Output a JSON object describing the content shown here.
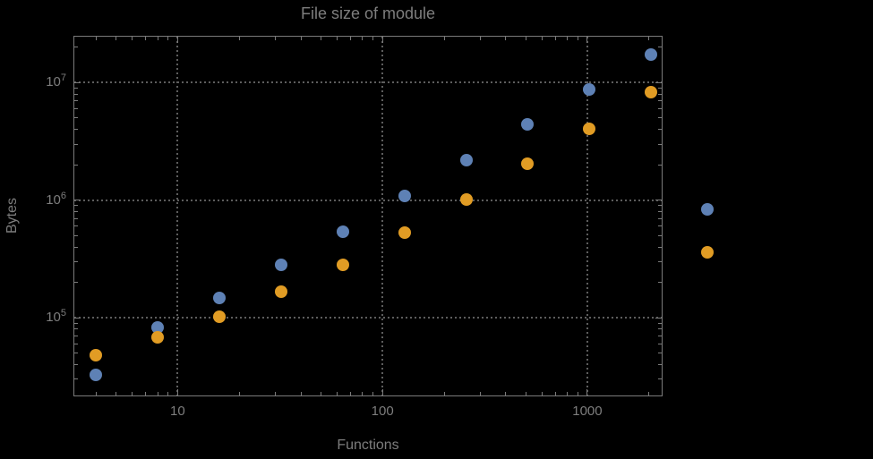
{
  "colors": {
    "background": "#000000",
    "frame": "#7a7a7a",
    "grid": "#5d5d5d",
    "text": "#7d7d7d",
    "point_blue": "#5E81B5",
    "point_orange": "#E19C24"
  },
  "chart_data": {
    "type": "scatter",
    "title": "File size of module",
    "xlabel": "Functions",
    "ylabel": "Bytes",
    "x_scale": "log",
    "y_scale": "log",
    "xlim": [
      3.1,
      2330
    ],
    "ylim": [
      21500,
      25000000
    ],
    "grid": "dotted lines at major ticks",
    "legend": "none",
    "plot_range_clipping": false,
    "x": [
      4,
      8,
      16,
      32,
      64,
      128,
      256,
      512,
      1024,
      2048,
      3850
    ],
    "series": [
      {
        "name": "blue",
        "color": "#5E81B5",
        "values": [
          33000,
          83000,
          148000,
          283000,
          541000,
          1090000,
          2200000,
          4440000,
          8800000,
          17400000,
          840000
        ]
      },
      {
        "name": "orange",
        "color": "#E19C24",
        "values": [
          48000,
          68000,
          102000,
          167000,
          283000,
          532000,
          1020000,
          2050000,
          4070000,
          8350000,
          362000
        ]
      }
    ],
    "x_major_ticks": [
      {
        "value": 10,
        "label": "10"
      },
      {
        "value": 100,
        "label": "100"
      },
      {
        "value": 1000,
        "label": "1000"
      }
    ],
    "y_major_ticks": [
      {
        "value": 100000,
        "mantissa": "10",
        "exponent": "5"
      },
      {
        "value": 1000000,
        "mantissa": "10",
        "exponent": "6"
      },
      {
        "value": 10000000,
        "mantissa": "10",
        "exponent": "7"
      }
    ],
    "x_minor_ticks": [
      4,
      5,
      6,
      7,
      8,
      9,
      20,
      30,
      40,
      50,
      60,
      70,
      80,
      90,
      200,
      300,
      400,
      500,
      600,
      700,
      800,
      900,
      2000
    ],
    "y_minor_ticks": [
      30000,
      40000,
      50000,
      60000,
      70000,
      80000,
      90000,
      200000,
      300000,
      400000,
      500000,
      600000,
      700000,
      800000,
      900000,
      2000000,
      3000000,
      4000000,
      5000000,
      6000000,
      7000000,
      8000000,
      9000000,
      20000000
    ]
  }
}
